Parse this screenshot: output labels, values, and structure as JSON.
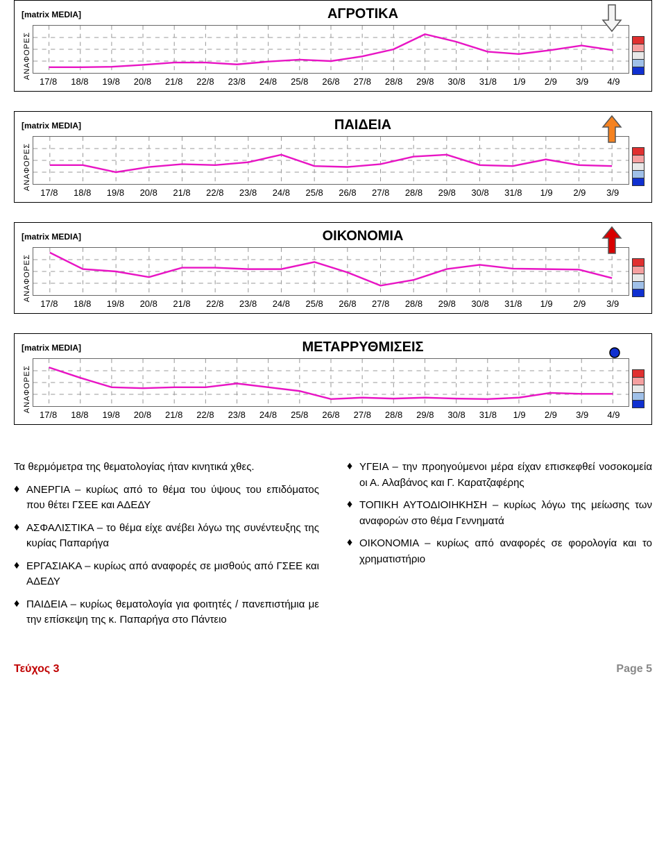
{
  "branding": {
    "logo_text": "[matrix MEDIA]"
  },
  "colors": {
    "line": "#e815c4",
    "grid": "#9a9a9a",
    "plot_border": "#666666",
    "arrow_outline": "#555555",
    "arrow_white_fill": "#f4f4f4",
    "arrow_orange_fill": "#f58220",
    "arrow_red_fill": "#d80000",
    "dot_blue": "#1030d0",
    "dot_stroke": "#000000",
    "legend": [
      "#e03030",
      "#f5a0a0",
      "#e8e8e8",
      "#a0c0e8",
      "#1030d0"
    ],
    "footer_issue": "#c00000",
    "footer_page": "#888888"
  },
  "common": {
    "ylabel": "ΑΝΑΦΟΡΕΣ",
    "grid_rows": 4,
    "line_width": 2.5
  },
  "charts": [
    {
      "title": "ΑΓΡΟΤΙΚΑ",
      "indicator": "arrow_down_white",
      "x": [
        "17/8",
        "18/8",
        "19/8",
        "20/8",
        "21/8",
        "22/8",
        "23/8",
        "24/8",
        "25/8",
        "26/8",
        "27/8",
        "28/8",
        "29/8",
        "30/8",
        "31/8",
        "1/9",
        "2/9",
        "3/9",
        "4/9"
      ],
      "y": [
        0.12,
        0.12,
        0.13,
        0.17,
        0.22,
        0.22,
        0.18,
        0.24,
        0.28,
        0.25,
        0.35,
        0.5,
        0.82,
        0.66,
        0.45,
        0.4,
        0.48,
        0.58,
        0.48
      ]
    },
    {
      "title": "ΠΑΙΔΕΙΑ",
      "indicator": "arrow_up_orange",
      "x": [
        "17/8",
        "18/8",
        "19/8",
        "20/8",
        "21/8",
        "22/8",
        "23/8",
        "24/8",
        "25/8",
        "26/8",
        "27/8",
        "28/8",
        "29/8",
        "30/8",
        "31/8",
        "1/9",
        "2/9",
        "3/9"
      ],
      "y": [
        0.4,
        0.4,
        0.25,
        0.36,
        0.42,
        0.4,
        0.46,
        0.62,
        0.38,
        0.36,
        0.42,
        0.58,
        0.62,
        0.4,
        0.38,
        0.52,
        0.4,
        0.38
      ]
    },
    {
      "title": "ΟΙΚΟΝΟΜΙΑ",
      "indicator": "arrow_up_red",
      "x": [
        "17/8",
        "18/8",
        "19/8",
        "20/8",
        "21/8",
        "22/8",
        "23/8",
        "24/8",
        "25/8",
        "26/8",
        "27/8",
        "28/8",
        "29/8",
        "30/8",
        "31/8",
        "1/9",
        "2/9",
        "3/9"
      ],
      "y": [
        0.9,
        0.55,
        0.5,
        0.38,
        0.58,
        0.58,
        0.55,
        0.55,
        0.7,
        0.48,
        0.2,
        0.32,
        0.55,
        0.64,
        0.56,
        0.55,
        0.54,
        0.36
      ]
    },
    {
      "title": "ΜΕΤΑΡΡΥΘΜΙΣΕΙΣ",
      "indicator": "dot_blue",
      "x": [
        "17/8",
        "18/8",
        "19/8",
        "20/8",
        "21/8",
        "22/8",
        "23/8",
        "24/8",
        "25/8",
        "26/8",
        "27/8",
        "28/8",
        "29/8",
        "30/8",
        "31/8",
        "1/9",
        "2/9",
        "3/9",
        "4/9"
      ],
      "y": [
        0.82,
        0.6,
        0.4,
        0.38,
        0.4,
        0.4,
        0.48,
        0.4,
        0.32,
        0.15,
        0.18,
        0.16,
        0.18,
        0.16,
        0.15,
        0.18,
        0.28,
        0.26,
        0.26
      ]
    }
  ],
  "body": {
    "intro": "Τα θερμόμετρα της θεματολογίας ήταν κινητικά χθες.",
    "left_bullets": [
      "ΑΝΕΡΓΙΑ – κυρίως από το θέμα του ύψους του επιδόματος που θέτει  ΓΣΕΕ και ΑΔΕΔΥ",
      "ΑΣΦΑΛΙΣΤΙΚΑ – το θέμα είχε ανέβει λόγω της συνέντευξης της κυρίας Παπαρήγα",
      " ΕΡΓΑΣΙΑΚΑ – κυρίως από αναφορές σε μισθούς από ΓΣΕΕ και ΑΔΕΔΥ",
      " ΠΑΙΔΕΙΑ – κυρίως θεματολογία για φοιτητές / πανεπιστήμια με την επίσκεψη της κ. Παπαρήγα στο Πάντειο"
    ],
    "right_bullets": [
      "ΥΓΕΙΑ – την προηγούμενοι μέρα είχαν επισκεφθεί νοσοκομεία οι Α. Αλαβάνος και Γ. Καρατζαφέρης",
      "ΤΟΠΙΚΗ ΑΥΤΟΔΙΟΙΗΚΗΣΗ – κυρίως λόγω της μείωσης των αναφορών στο θέμα Γεννηματά",
      "ΟΙΚΟΝΟΜΙΑ – κυρίως από αναφορές σε φορολογία και το χρηματιστήριο"
    ]
  },
  "footer": {
    "issue": "Τεύχος 3",
    "page": "Page 5"
  }
}
